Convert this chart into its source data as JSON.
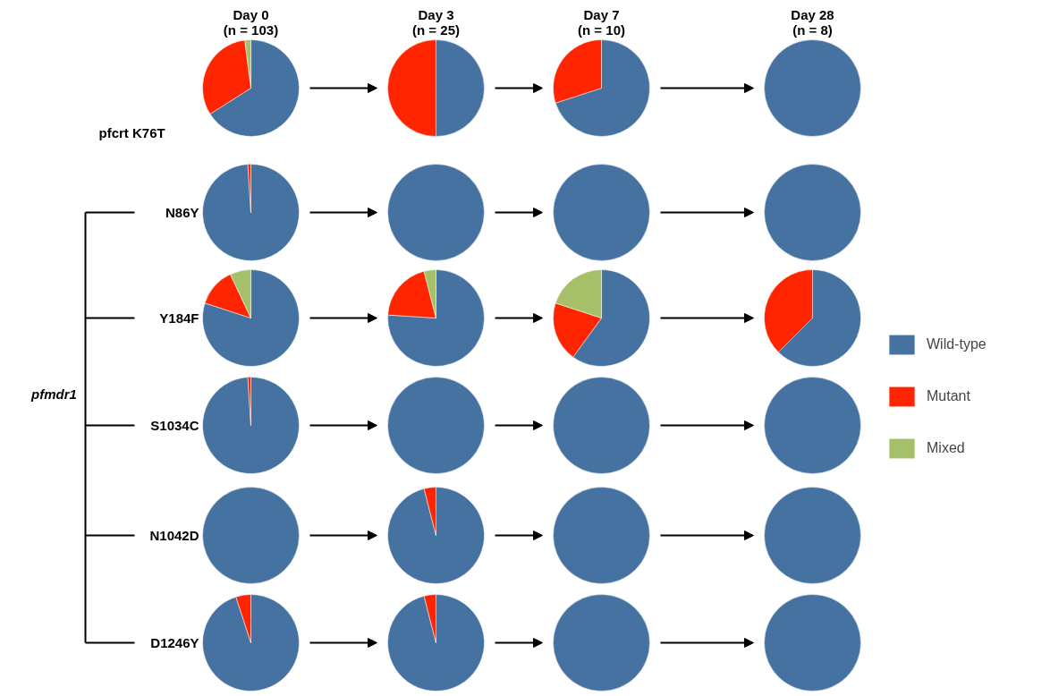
{
  "chart_data": [
    {
      "type": "pie",
      "title": "Day 0\n(n = 103)",
      "ylabel": "pfcrt K76T",
      "categories": [
        null,
        null,
        null
      ],
      "values": [
        66,
        32,
        2
      ],
      "colors": [
        "#4672a1",
        "#fe2500",
        "#a5c068"
      ]
    },
    {
      "type": "pie",
      "title": "Day 3\n(n = 25)",
      "categories": [
        null,
        null,
        null
      ],
      "values": [
        50,
        50,
        0
      ],
      "colors": [
        "#4672a1",
        "#fe2500",
        "#a5c068"
      ]
    },
    {
      "type": "pie",
      "title": "Day 7\n(n = 10)",
      "categories": [
        null,
        null,
        null
      ],
      "values": [
        70,
        30,
        0
      ],
      "colors": [
        "#4672a1",
        "#fe2500",
        "#a5c068"
      ]
    },
    {
      "type": "pie",
      "title": "Day 28\n(n = 8)",
      "categories": [
        null,
        null,
        null
      ],
      "values": [
        100,
        0,
        0
      ],
      "colors": [
        "#4672a1",
        "#fe2500",
        "#a5c068"
      ]
    },
    {
      "type": "pie",
      "ylabel": "N86Y",
      "categories": [
        null,
        null,
        null
      ],
      "values": [
        99,
        1,
        0
      ],
      "colors": [
        "#4672a1",
        "#fe2500",
        "#a5c068"
      ]
    },
    {
      "type": "pie",
      "categories": [
        null,
        null,
        null
      ],
      "values": [
        100,
        0,
        0
      ],
      "colors": [
        "#4672a1",
        "#fe2500",
        "#a5c068"
      ]
    },
    {
      "type": "pie",
      "categories": [
        null,
        null,
        null
      ],
      "values": [
        100,
        0,
        0
      ],
      "colors": [
        "#4672a1",
        "#fe2500",
        "#a5c068"
      ]
    },
    {
      "type": "pie",
      "categories": [
        null,
        null,
        null
      ],
      "values": [
        100,
        0,
        0
      ],
      "colors": [
        "#4672a1",
        "#fe2500",
        "#a5c068"
      ]
    },
    {
      "type": "pie",
      "ylabel": "Y184F",
      "categories": [
        null,
        null,
        null
      ],
      "values": [
        80,
        13,
        7
      ],
      "colors": [
        "#4672a1",
        "#fe2500",
        "#a5c068"
      ]
    },
    {
      "type": "pie",
      "categories": [
        null,
        null,
        null
      ],
      "values": [
        76,
        20,
        4
      ],
      "colors": [
        "#4672a1",
        "#fe2500",
        "#a5c068"
      ]
    },
    {
      "type": "pie",
      "categories": [
        null,
        null,
        null
      ],
      "values": [
        60,
        20,
        20
      ],
      "colors": [
        "#4672a1",
        "#fe2500",
        "#a5c068"
      ]
    },
    {
      "type": "pie",
      "legend": "right",
      "categories": [
        "Wild-type",
        "Mutant",
        "Mixed"
      ],
      "values": [
        62.5,
        37.5,
        0
      ],
      "colors": [
        "#4672a1",
        "#fe2500",
        "#a5c068"
      ]
    },
    {
      "type": "pie",
      "ylabel": "S1034C",
      "annotations": [
        "pfmdr1"
      ],
      "categories": [
        null,
        null,
        null
      ],
      "values": [
        99,
        1,
        0
      ],
      "colors": [
        "#4672a1",
        "#fe2500",
        "#a5c068"
      ]
    },
    {
      "type": "pie",
      "categories": [
        null,
        null,
        null
      ],
      "values": [
        100,
        0,
        0
      ],
      "colors": [
        "#4672a1",
        "#fe2500",
        "#a5c068"
      ]
    },
    {
      "type": "pie",
      "categories": [
        null,
        null,
        null
      ],
      "values": [
        100,
        0,
        0
      ],
      "colors": [
        "#4672a1",
        "#fe2500",
        "#a5c068"
      ]
    },
    {
      "type": "pie",
      "categories": [
        null,
        null,
        null
      ],
      "values": [
        100,
        0,
        0
      ],
      "colors": [
        "#4672a1",
        "#fe2500",
        "#a5c068"
      ]
    },
    {
      "type": "pie",
      "ylabel": "N1042D",
      "categories": [
        null,
        null,
        null
      ],
      "values": [
        100,
        0,
        0
      ],
      "colors": [
        "#4672a1",
        "#fe2500",
        "#a5c068"
      ]
    },
    {
      "type": "pie",
      "categories": [
        null,
        null,
        null
      ],
      "values": [
        96,
        4,
        0
      ],
      "colors": [
        "#4672a1",
        "#fe2500",
        "#a5c068"
      ]
    },
    {
      "type": "pie",
      "categories": [
        null,
        null,
        null
      ],
      "values": [
        100,
        0,
        0
      ],
      "colors": [
        "#4672a1",
        "#fe2500",
        "#a5c068"
      ]
    },
    {
      "type": "pie",
      "categories": [
        null,
        null,
        null
      ],
      "values": [
        100,
        0,
        0
      ],
      "colors": [
        "#4672a1",
        "#fe2500",
        "#a5c068"
      ]
    },
    {
      "type": "pie",
      "ylabel": "D1246Y",
      "categories": [
        null,
        null,
        null
      ],
      "values": [
        95,
        5,
        0
      ],
      "colors": [
        "#4672a1",
        "#fe2500",
        "#a5c068"
      ]
    },
    {
      "type": "pie",
      "categories": [
        null,
        null,
        null
      ],
      "values": [
        96,
        4,
        0
      ],
      "colors": [
        "#4672a1",
        "#fe2500",
        "#a5c068"
      ]
    },
    {
      "type": "pie",
      "categories": [
        null,
        null,
        null
      ],
      "values": [
        100,
        0,
        0
      ],
      "colors": [
        "#4672a1",
        "#fe2500",
        "#a5c068"
      ]
    },
    {
      "type": "pie",
      "categories": [
        null,
        null,
        null
      ],
      "values": [
        100,
        0,
        0
      ],
      "colors": [
        "#4672a1",
        "#fe2500",
        "#a5c068"
      ]
    }
  ]
}
